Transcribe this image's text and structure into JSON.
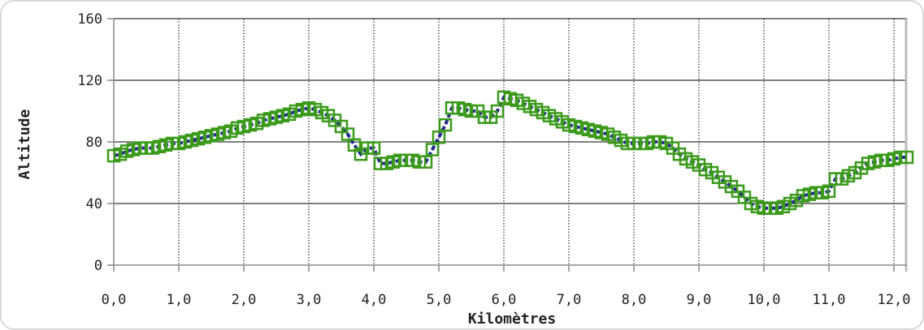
{
  "chart_data": {
    "type": "line",
    "title": "",
    "xlabel": "Kilomètres",
    "ylabel": "Altitude",
    "xlim": [
      0,
      12.2
    ],
    "ylim": [
      0,
      160
    ],
    "x_ticks": [
      {
        "value": 0,
        "label": "0,0"
      },
      {
        "value": 1,
        "label": "1,0"
      },
      {
        "value": 2,
        "label": "2,0"
      },
      {
        "value": 3,
        "label": "3,0"
      },
      {
        "value": 4,
        "label": "4,0"
      },
      {
        "value": 5,
        "label": "5,0"
      },
      {
        "value": 6,
        "label": "6,0"
      },
      {
        "value": 7,
        "label": "7,0"
      },
      {
        "value": 8,
        "label": "8,0"
      },
      {
        "value": 9,
        "label": "9,0"
      },
      {
        "value": 10,
        "label": "10,0"
      },
      {
        "value": 11,
        "label": "11,0"
      },
      {
        "value": 12,
        "label": "12,0"
      }
    ],
    "y_ticks": [
      {
        "value": 0,
        "label": "0"
      },
      {
        "value": 40,
        "label": "40"
      },
      {
        "value": 80,
        "label": "80"
      },
      {
        "value": 120,
        "label": "120"
      },
      {
        "value": 160,
        "label": "160"
      }
    ],
    "grid": {
      "horizontal": "solid",
      "vertical": "dotted"
    },
    "colors": {
      "line": "#1f2a8a",
      "marker": "#3a9a1a",
      "grid": "#000000",
      "axis": "#888888",
      "frame": "#d8d8d8"
    },
    "series": [
      {
        "x": [
          0.0,
          0.1,
          0.2,
          0.3,
          0.4,
          0.5,
          0.6,
          0.7,
          0.8,
          0.9,
          1.0,
          1.1,
          1.2,
          1.3,
          1.4,
          1.5,
          1.6,
          1.7,
          1.8,
          1.9,
          2.0,
          2.1,
          2.2,
          2.3,
          2.4,
          2.5,
          2.6,
          2.7,
          2.8,
          2.9,
          3.0,
          3.1,
          3.2,
          3.3,
          3.4,
          3.5,
          3.6,
          3.7,
          3.8,
          3.9,
          4.0,
          4.1,
          4.2,
          4.3,
          4.4,
          4.5,
          4.6,
          4.7,
          4.8,
          4.9,
          5.0,
          5.1,
          5.2,
          5.3,
          5.4,
          5.5,
          5.6,
          5.7,
          5.8,
          5.9,
          6.0,
          6.1,
          6.2,
          6.3,
          6.4,
          6.5,
          6.6,
          6.7,
          6.8,
          6.9,
          7.0,
          7.1,
          7.2,
          7.3,
          7.4,
          7.5,
          7.6,
          7.7,
          7.8,
          7.9,
          8.0,
          8.1,
          8.2,
          8.3,
          8.4,
          8.5,
          8.6,
          8.7,
          8.8,
          8.9,
          9.0,
          9.1,
          9.2,
          9.3,
          9.4,
          9.5,
          9.6,
          9.7,
          9.8,
          9.9,
          10.0,
          10.1,
          10.2,
          10.3,
          10.4,
          10.5,
          10.6,
          10.7,
          10.8,
          10.9,
          11.0,
          11.1,
          11.2,
          11.3,
          11.4,
          11.5,
          11.6,
          11.7,
          11.8,
          11.9,
          12.0,
          12.1,
          12.2
        ],
        "y": [
          71,
          72,
          74,
          75,
          76,
          76,
          76,
          77,
          78,
          79,
          79,
          80,
          81,
          82,
          83,
          84,
          85,
          86,
          87,
          89,
          90,
          91,
          92,
          94,
          95,
          96,
          97,
          98,
          100,
          101,
          102,
          101,
          99,
          97,
          94,
          90,
          85,
          78,
          72,
          76,
          76,
          66,
          66,
          67,
          68,
          68,
          68,
          67,
          67,
          75,
          83,
          91,
          102,
          102,
          101,
          100,
          100,
          96,
          96,
          100,
          109,
          108,
          107,
          105,
          103,
          101,
          99,
          97,
          95,
          93,
          91,
          90,
          89,
          88,
          87,
          86,
          85,
          83,
          81,
          79,
          79,
          79,
          79,
          80,
          80,
          79,
          76,
          72,
          69,
          67,
          65,
          62,
          60,
          57,
          54,
          51,
          48,
          44,
          40,
          38,
          37,
          37,
          37,
          38,
          40,
          42,
          45,
          46,
          47,
          47,
          48,
          56,
          56,
          58,
          60,
          63,
          66,
          67,
          68,
          68,
          69,
          70,
          70
        ]
      }
    ]
  }
}
